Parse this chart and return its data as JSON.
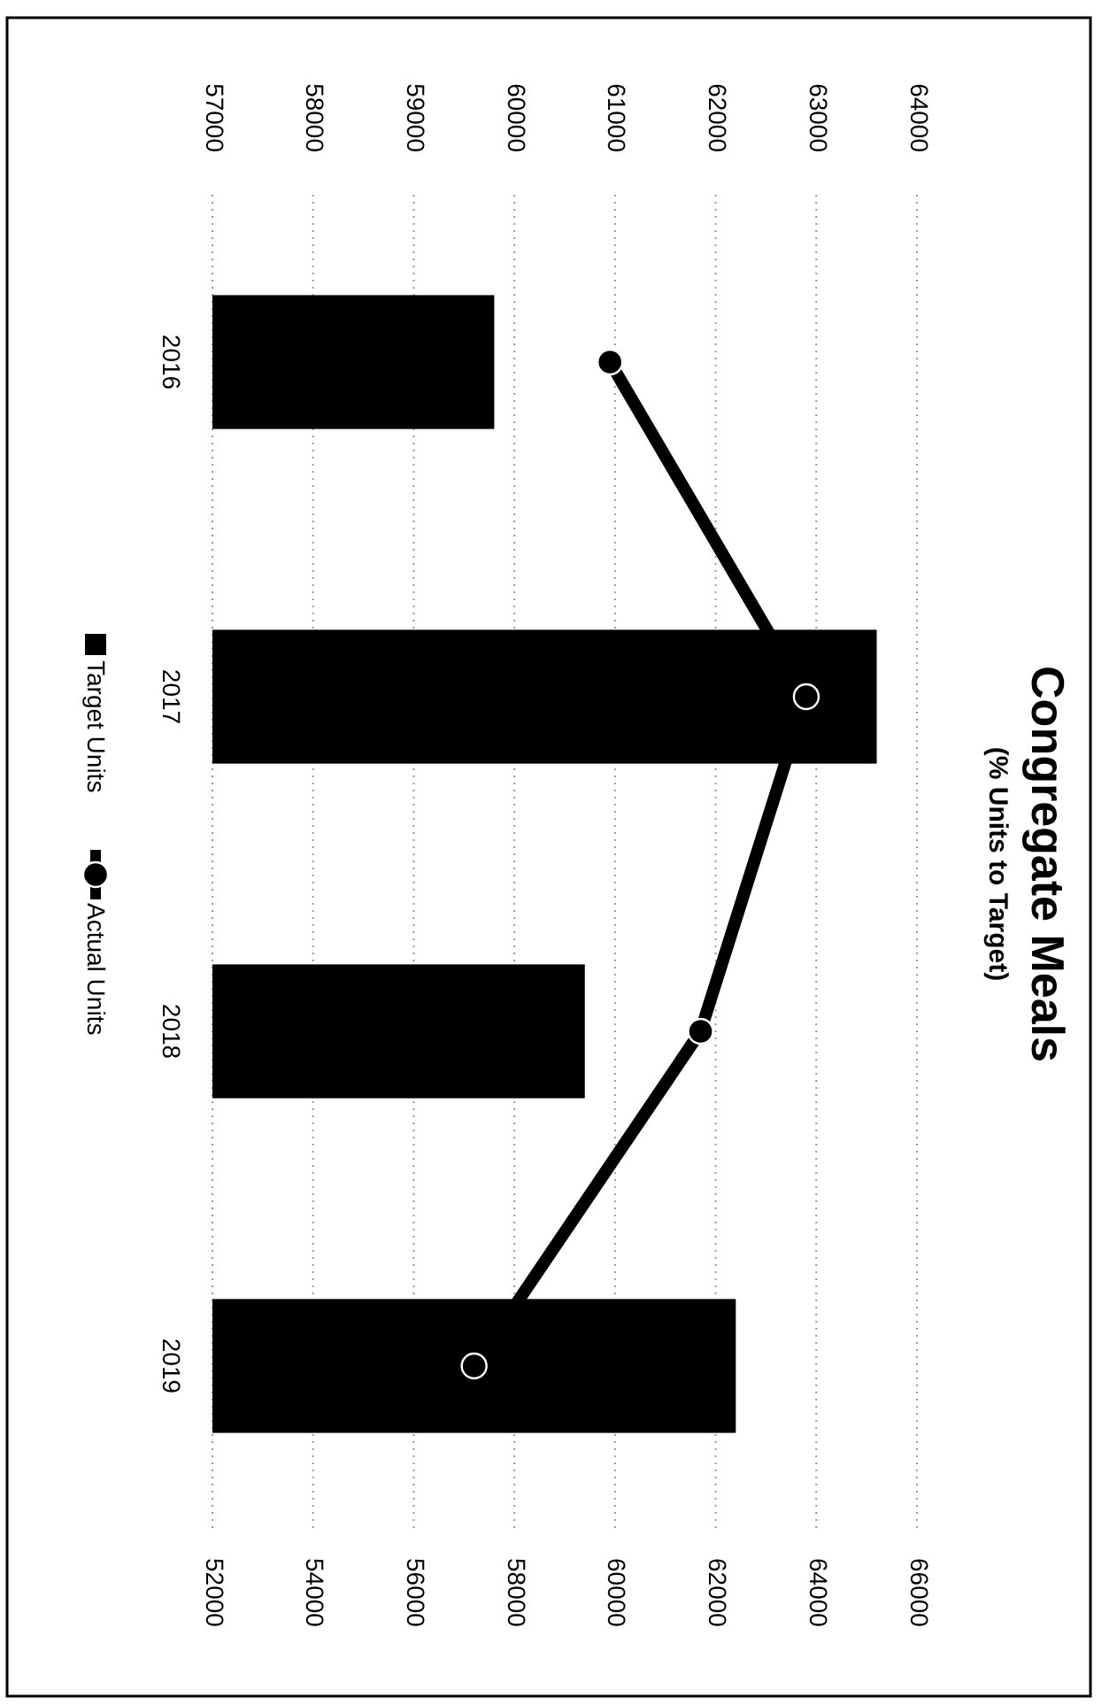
{
  "chart_data": {
    "type": "bar",
    "orientation": "horizontal",
    "title": "Congregate Meals",
    "subtitle": "(% Units to Target)",
    "categories": [
      "2016",
      "2017",
      "2018",
      "2019"
    ],
    "series": [
      {
        "name": "Target Units",
        "axis": "x2",
        "color": "#000000",
        "values": [
          59800,
          63600,
          60700,
          62200
        ]
      },
      {
        "name": "Actual Units",
        "type": "line",
        "color": "#000000",
        "marker": "circle",
        "values": [
          59900,
          63800,
          61700,
          57200
        ]
      }
    ],
    "xlim": [
      52000,
      66000
    ],
    "xticks": [
      52000,
      54000,
      56000,
      58000,
      60000,
      62000,
      64000,
      66000
    ],
    "x2lim": [
      57000,
      64000
    ],
    "x2ticks": [
      57000,
      58000,
      59000,
      60000,
      61000,
      62000,
      63000,
      64000
    ],
    "grid": "x",
    "legend": "left"
  }
}
